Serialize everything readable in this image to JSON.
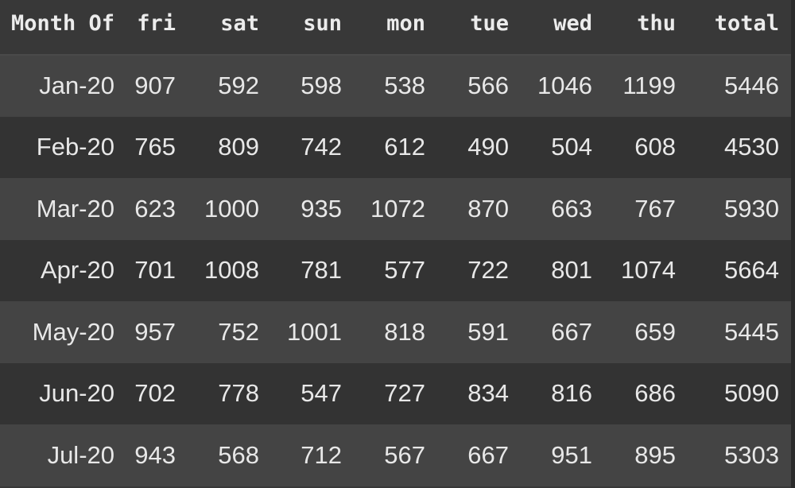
{
  "table": {
    "columns": [
      "Month Of",
      "fri",
      "sat",
      "sun",
      "mon",
      "tue",
      "wed",
      "thu",
      "total"
    ],
    "rows": [
      {
        "label": "Jan-20",
        "values": [
          "907",
          "592",
          "598",
          "538",
          "566",
          "1046",
          "1199",
          "5446"
        ]
      },
      {
        "label": "Feb-20",
        "values": [
          "765",
          "809",
          "742",
          "612",
          "490",
          "504",
          "608",
          "4530"
        ]
      },
      {
        "label": "Mar-20",
        "values": [
          "623",
          "1000",
          "935",
          "1072",
          "870",
          "663",
          "767",
          "5930"
        ]
      },
      {
        "label": "Apr-20",
        "values": [
          "701",
          "1008",
          "781",
          "577",
          "722",
          "801",
          "1074",
          "5664"
        ]
      },
      {
        "label": "May-20",
        "values": [
          "957",
          "752",
          "1001",
          "818",
          "591",
          "667",
          "659",
          "5445"
        ]
      },
      {
        "label": "Jun-20",
        "values": [
          "702",
          "778",
          "547",
          "727",
          "834",
          "816",
          "686",
          "5090"
        ]
      },
      {
        "label": "Jul-20",
        "values": [
          "943",
          "568",
          "712",
          "567",
          "667",
          "951",
          "895",
          "5303"
        ]
      }
    ]
  },
  "colors": {
    "background": "#383838",
    "row_odd": "#444444",
    "row_even": "#333333",
    "text": "#e8e8e8"
  }
}
